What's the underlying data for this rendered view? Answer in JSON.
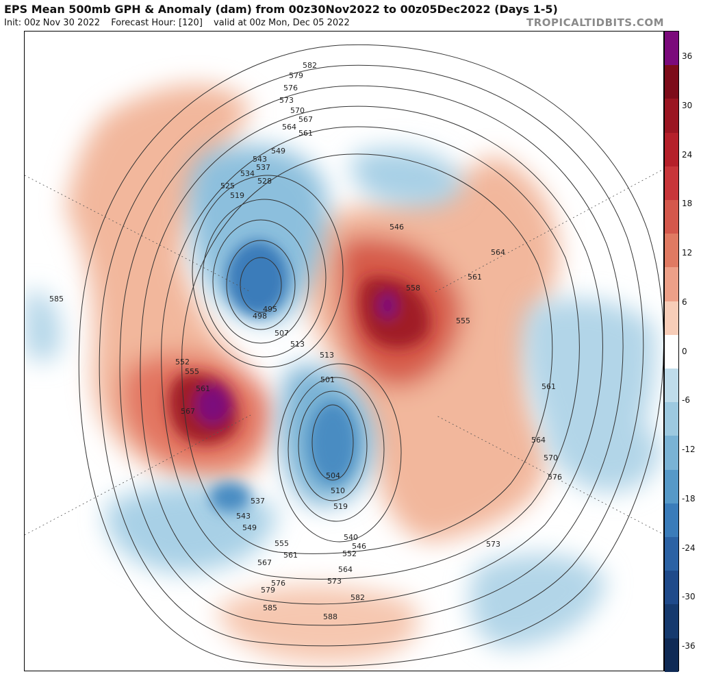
{
  "header": {
    "title": "EPS Mean 500mb GPH & Anomaly (dam) from 00z30Nov2022 to 00z05Dec2022 (Days 1-5)",
    "init": "Init: 00z Nov 30 2022",
    "forecast_hour": "Forecast Hour: [120]",
    "valid": "valid at 00z Mon, Dec 05 2022",
    "brand": "TROPICALTIDBITS.COM"
  },
  "colorbar": {
    "ticks": [
      "36",
      "30",
      "24",
      "18",
      "12",
      "6",
      "0",
      "-6",
      "-12",
      "-18",
      "-24",
      "-30",
      "-36"
    ],
    "colors": [
      "#7b0a7b",
      "#7d0c1a",
      "#9b1622",
      "#b5202a",
      "#c8363a",
      "#d4584c",
      "#e07a62",
      "#eda088",
      "#f7cdb8",
      "#ffffff",
      "#bfdcea",
      "#9dc9e0",
      "#7ab3d5",
      "#5699c8",
      "#3a7cba",
      "#2b62a4",
      "#1f4a8a",
      "#163a6e",
      "#0f2a55"
    ]
  },
  "contour_labels": [
    "582",
    "579",
    "576",
    "573",
    "570",
    "567",
    "564",
    "561",
    "549",
    "543",
    "537",
    "534",
    "528",
    "525",
    "519",
    "495",
    "498",
    "507",
    "513",
    "513",
    "546",
    "564",
    "561",
    "558",
    "555",
    "552",
    "555",
    "561",
    "567",
    "501",
    "504",
    "510",
    "519",
    "537",
    "543",
    "549",
    "555",
    "561",
    "567",
    "540",
    "546",
    "552",
    "564",
    "573",
    "576",
    "579",
    "582",
    "585",
    "588",
    "585",
    "561",
    "564",
    "570",
    "576",
    "573"
  ]
}
